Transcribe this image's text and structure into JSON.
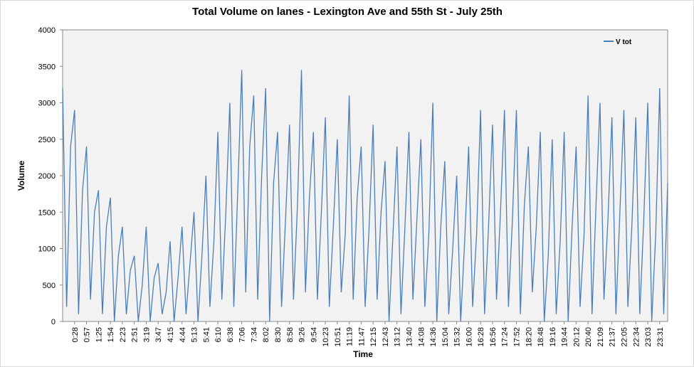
{
  "chart_data": {
    "type": "line",
    "title": "Total Volume on lanes - Lexington Ave and 55th St - July 25th",
    "x_label": "Time",
    "y_label": "Volume",
    "categories": [
      null,
      null,
      null,
      "0:28",
      null,
      null,
      "0:57",
      null,
      null,
      "1:25",
      null,
      null,
      "1:54",
      null,
      null,
      "2:23",
      null,
      null,
      "2:51",
      null,
      null,
      "3:19",
      null,
      null,
      "3:47",
      null,
      null,
      "4:15",
      null,
      null,
      "4:44",
      null,
      null,
      "5:13",
      null,
      null,
      "5:41",
      null,
      null,
      "6:10",
      null,
      null,
      "6:38",
      null,
      null,
      "7:06",
      null,
      null,
      "7:34",
      null,
      null,
      "8:02",
      null,
      null,
      "8:30",
      null,
      null,
      "8:58",
      null,
      null,
      "9:26",
      null,
      null,
      "9:54",
      null,
      null,
      "10:23",
      null,
      null,
      "10:51",
      null,
      null,
      "11:19",
      null,
      null,
      "11:47",
      null,
      null,
      "12:15",
      null,
      null,
      "12:43",
      null,
      null,
      "13:12",
      null,
      null,
      "13:40",
      null,
      null,
      "14:08",
      null,
      null,
      "14:36",
      null,
      null,
      "15:04",
      null,
      null,
      "15:32",
      null,
      null,
      "16:00",
      null,
      null,
      "16:28",
      null,
      null,
      "16:56",
      null,
      null,
      "17:24",
      null,
      null,
      "17:52",
      null,
      null,
      "18:20",
      null,
      null,
      "18:48",
      null,
      null,
      "19:16",
      null,
      null,
      "19:44",
      null,
      null,
      "20:12",
      null,
      null,
      "20:40",
      null,
      null,
      "21:09",
      null,
      null,
      "21:37",
      null,
      null,
      "22:05",
      null,
      null,
      "22:34",
      null,
      null,
      "23:03",
      null,
      null,
      "23:31",
      null,
      null
    ],
    "series": [
      {
        "name": "V tot",
        "color": "#4a7ebb",
        "values": [
          3200,
          200,
          2400,
          2900,
          100,
          1800,
          2400,
          300,
          1500,
          1800,
          100,
          1300,
          1700,
          0,
          900,
          1300,
          100,
          700,
          900,
          0,
          500,
          1300,
          0,
          600,
          800,
          100,
          400,
          1100,
          0,
          600,
          1300,
          100,
          800,
          1500,
          0,
          900,
          2000,
          200,
          1100,
          2600,
          300,
          1500,
          3000,
          200,
          1800,
          3450,
          400,
          2400,
          3100,
          300,
          2000,
          3200,
          0,
          1900,
          2600,
          200,
          1400,
          2700,
          300,
          1600,
          3450,
          400,
          1700,
          2600,
          300,
          1500,
          2800,
          200,
          1300,
          2500,
          400,
          1200,
          3100,
          300,
          1700,
          2400,
          200,
          1300,
          2700,
          300,
          1500,
          2200,
          0,
          1200,
          2400,
          100,
          1300,
          2600,
          300,
          1400,
          2500,
          200,
          1200,
          3000,
          0,
          1300,
          2200,
          100,
          1000,
          2000,
          0,
          1100,
          2400,
          200,
          1200,
          2900,
          100,
          1300,
          2700,
          300,
          1500,
          2900,
          200,
          1400,
          2900,
          100,
          1600,
          2400,
          400,
          1300,
          2600,
          0,
          900,
          2500,
          100,
          1100,
          2600,
          0,
          1300,
          2400,
          200,
          1200,
          3100,
          100,
          1600,
          3000,
          300,
          1400,
          2800,
          100,
          1500,
          2900,
          200,
          1300,
          2800,
          100,
          1400,
          3000,
          0,
          1200,
          3200,
          100,
          1900
        ]
      }
    ],
    "ylim": [
      0,
      4000
    ],
    "yticks": [
      0,
      500,
      1000,
      1500,
      2000,
      2500,
      3000,
      3500,
      4000
    ],
    "legend": "upper right"
  }
}
